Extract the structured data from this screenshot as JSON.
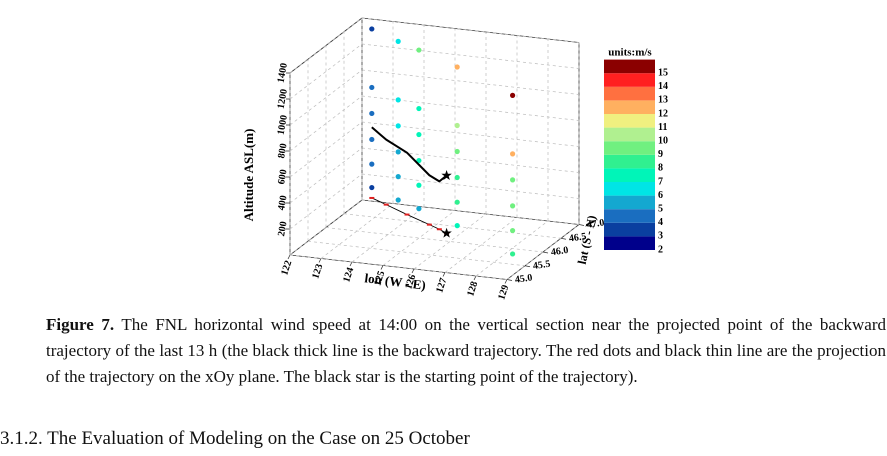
{
  "chart_data": {
    "type": "scatter3d",
    "zlabel": "Altitude ASL(m)",
    "xlabel": "lon (W - E)",
    "ylabel": "lat (S - N)",
    "xlim": [
      122,
      129
    ],
    "ylim": [
      45,
      47
    ],
    "zlim": [
      0,
      1400
    ],
    "xticks": [
      122,
      123,
      124,
      125,
      126,
      127,
      128,
      129
    ],
    "yticks": [
      {
        "value": 45,
        "label": "45.0"
      },
      45.5,
      {
        "value": 46,
        "label": "46.0"
      },
      46.5,
      {
        "value": 47,
        "label": "47.0"
      }
    ],
    "zticks": [
      200,
      400,
      600,
      800,
      1000,
      1200,
      1400
    ],
    "grid": true,
    "colorbar": {
      "title": "units:m/s",
      "levels": [
        2,
        3,
        4,
        5,
        6,
        7,
        8,
        9,
        10,
        11,
        12,
        13,
        14,
        15
      ],
      "colors": [
        "#00008b",
        "#0a3fa0",
        "#1a6ec0",
        "#14a8d0",
        "#00e5e5",
        "#00f5b8",
        "#30f090",
        "#70f080",
        "#b0f090",
        "#f0f080",
        "#ffb060",
        "#ff7040",
        "#ff2020",
        "#8b0000"
      ]
    },
    "z": [
      80,
      260,
      450,
      650,
      850,
      1300
    ],
    "columns": [
      {
        "lon": 122.2,
        "lat": 47.1,
        "speed": [
          3,
          4,
          4,
          4,
          4,
          3
        ]
      },
      {
        "lon": 123.4,
        "lat": 46.8,
        "speed": [
          5,
          5,
          5,
          6,
          6,
          6
        ]
      },
      {
        "lon": 124.3,
        "lat": 46.6,
        "speed": [
          5,
          7,
          7,
          7,
          7,
          9
        ]
      },
      {
        "lon": 126.0,
        "lat": 46.2,
        "speed": [
          7,
          8,
          8,
          9,
          10,
          12
        ]
      },
      {
        "lon": 128.6,
        "lat": 45.5,
        "speed": [
          8,
          9,
          9,
          9,
          12,
          15
        ]
      }
    ],
    "trajectory": {
      "lon": [
        122.2,
        122.85,
        123.8,
        124.8,
        125.25,
        125.6
      ],
      "lat": [
        47.1,
        46.94,
        46.7,
        46.46,
        46.35,
        46.25
      ],
      "alt": [
        544,
        500,
        476,
        380,
        368,
        444
      ],
      "color": "#000000",
      "projection_color": "#e02020"
    }
  },
  "caption": {
    "label": "Figure 7.",
    "text": "The FNL horizontal wind speed at 14:00 on the vertical section near the projected point of the backward trajectory of the last 13 h (the black thick line is the backward trajectory. The red dots and black thin line are the projection of the trajectory on the xOy plane. The black star is the starting point of the trajectory)."
  },
  "heading": "3.1.2. The Evaluation of Modeling on the Case on 25 October"
}
